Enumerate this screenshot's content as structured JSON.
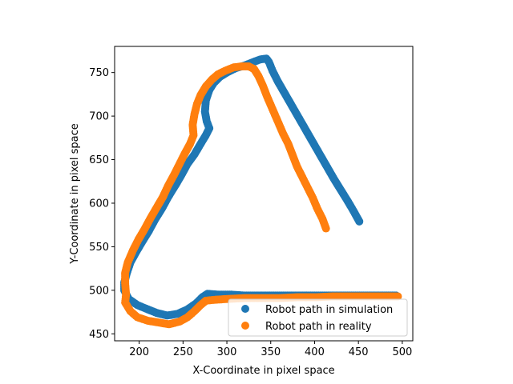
{
  "chart_data": {
    "type": "scatter",
    "xlabel": "X-Coordinate in pixel space",
    "ylabel": "Y-Coordinate in pixel space",
    "xlim": [
      172,
      512
    ],
    "ylim": [
      442,
      780
    ],
    "xticks": [
      200,
      250,
      300,
      350,
      400,
      450,
      500
    ],
    "yticks": [
      450,
      500,
      550,
      600,
      650,
      700,
      750
    ],
    "grid": false,
    "legend_position": "lower-right",
    "series": [
      {
        "name": "Robot path in simulation",
        "color": "#1f77b4",
        "points": [
          [
            451,
            579
          ],
          [
            445,
            590
          ],
          [
            438,
            602
          ],
          [
            430,
            615
          ],
          [
            422,
            628
          ],
          [
            414,
            642
          ],
          [
            406,
            656
          ],
          [
            398,
            670
          ],
          [
            390,
            684
          ],
          [
            382,
            698
          ],
          [
            374,
            712
          ],
          [
            366,
            726
          ],
          [
            358,
            740
          ],
          [
            352,
            752
          ],
          [
            348,
            762
          ],
          [
            345,
            766
          ],
          [
            338,
            765
          ],
          [
            330,
            762
          ],
          [
            320,
            758
          ],
          [
            310,
            755
          ],
          [
            300,
            750
          ],
          [
            292,
            745
          ],
          [
            285,
            738
          ],
          [
            280,
            730
          ],
          [
            276,
            718
          ],
          [
            275,
            705
          ],
          [
            277,
            694
          ],
          [
            280,
            686
          ],
          [
            276,
            678
          ],
          [
            270,
            668
          ],
          [
            263,
            656
          ],
          [
            255,
            645
          ],
          [
            248,
            632
          ],
          [
            241,
            620
          ],
          [
            233,
            607
          ],
          [
            226,
            594
          ],
          [
            218,
            581
          ],
          [
            211,
            568
          ],
          [
            203,
            555
          ],
          [
            196,
            543
          ],
          [
            190,
            532
          ],
          [
            186,
            520
          ],
          [
            183,
            509
          ],
          [
            183,
            500
          ],
          [
            188,
            490
          ],
          [
            198,
            483
          ],
          [
            210,
            478
          ],
          [
            220,
            474
          ],
          [
            232,
            471
          ],
          [
            244,
            473
          ],
          [
            255,
            478
          ],
          [
            265,
            485
          ],
          [
            272,
            492
          ],
          [
            278,
            496
          ],
          [
            290,
            495
          ],
          [
            305,
            495
          ],
          [
            320,
            494
          ],
          [
            340,
            494
          ],
          [
            360,
            494
          ],
          [
            380,
            494
          ],
          [
            400,
            494
          ],
          [
            420,
            494
          ],
          [
            440,
            494
          ],
          [
            460,
            494
          ],
          [
            480,
            494
          ],
          [
            493,
            494
          ]
        ]
      },
      {
        "name": "Robot path in reality",
        "color": "#ff7f0e",
        "points": [
          [
            413,
            571
          ],
          [
            409,
            582
          ],
          [
            403,
            594
          ],
          [
            398,
            606
          ],
          [
            392,
            618
          ],
          [
            386,
            630
          ],
          [
            380,
            642
          ],
          [
            375,
            655
          ],
          [
            370,
            668
          ],
          [
            364,
            680
          ],
          [
            358,
            694
          ],
          [
            352,
            708
          ],
          [
            346,
            722
          ],
          [
            341,
            735
          ],
          [
            336,
            746
          ],
          [
            331,
            754
          ],
          [
            325,
            757
          ],
          [
            317,
            757
          ],
          [
            308,
            756
          ],
          [
            298,
            752
          ],
          [
            290,
            748
          ],
          [
            283,
            742
          ],
          [
            276,
            734
          ],
          [
            270,
            724
          ],
          [
            266,
            714
          ],
          [
            263,
            702
          ],
          [
            261,
            690
          ],
          [
            262,
            678
          ],
          [
            258,
            668
          ],
          [
            252,
            657
          ],
          [
            246,
            645
          ],
          [
            240,
            633
          ],
          [
            233,
            620
          ],
          [
            227,
            607
          ],
          [
            220,
            595
          ],
          [
            213,
            583
          ],
          [
            206,
            570
          ],
          [
            199,
            558
          ],
          [
            193,
            546
          ],
          [
            187,
            532
          ],
          [
            184,
            520
          ],
          [
            184,
            508
          ],
          [
            185,
            495
          ],
          [
            184,
            486
          ],
          [
            190,
            476
          ],
          [
            198,
            469
          ],
          [
            210,
            465
          ],
          [
            222,
            463
          ],
          [
            234,
            461
          ],
          [
            246,
            464
          ],
          [
            255,
            469
          ],
          [
            263,
            476
          ],
          [
            270,
            483
          ],
          [
            276,
            488
          ],
          [
            285,
            489
          ],
          [
            300,
            490
          ],
          [
            320,
            491
          ],
          [
            340,
            491
          ],
          [
            360,
            491
          ],
          [
            380,
            492
          ],
          [
            400,
            492
          ],
          [
            420,
            493
          ],
          [
            440,
            493
          ],
          [
            460,
            493
          ],
          [
            480,
            493
          ],
          [
            495,
            493
          ]
        ]
      }
    ]
  }
}
